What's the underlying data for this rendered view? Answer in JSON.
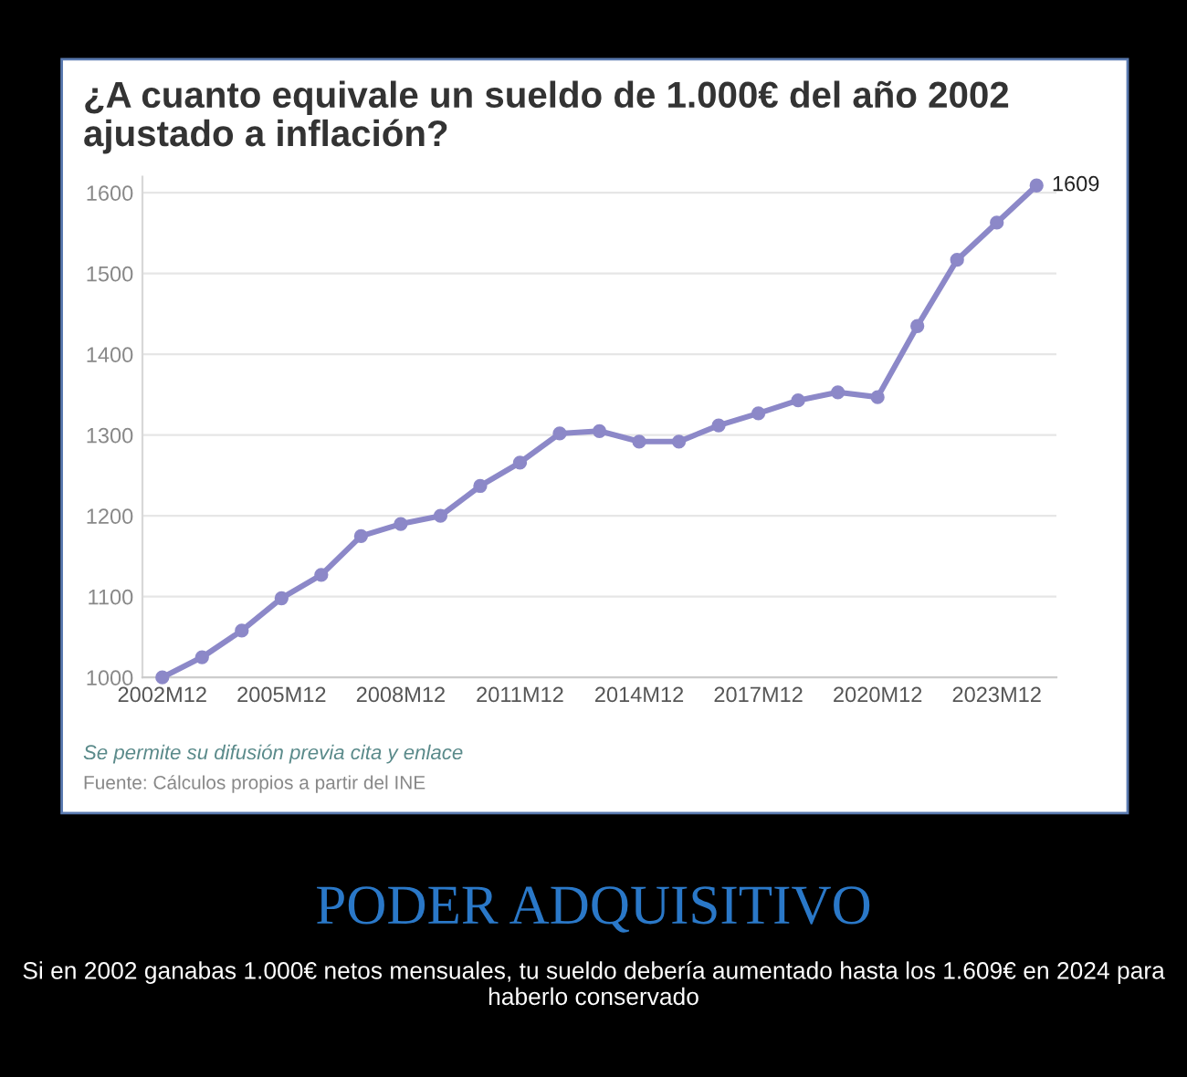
{
  "chart_data": {
    "type": "line",
    "title": "¿A cuanto equivale un sueldo de 1.000€ del año 2002\najustado a inflación?",
    "categories": [
      "2002M12",
      null,
      null,
      "2005M12",
      null,
      null,
      "2008M12",
      null,
      null,
      "2011M12",
      null,
      null,
      "2014M12",
      null,
      null,
      "2017M12",
      null,
      null,
      "2020M12",
      null,
      null,
      "2023M12",
      null
    ],
    "series": [
      {
        "color": "#8c88c8",
        "values": [
          1000,
          1025,
          1058,
          1098,
          1127,
          1175,
          1190,
          1200,
          1237,
          1266,
          1302,
          1305,
          1292,
          1292,
          1312,
          1327,
          1343,
          1353,
          1347,
          1435,
          1517,
          1563,
          1609
        ],
        "value_labels": [
          null,
          null,
          null,
          null,
          null,
          null,
          null,
          null,
          null,
          null,
          null,
          null,
          null,
          null,
          null,
          null,
          null,
          null,
          null,
          null,
          null,
          null,
          "1609"
        ]
      }
    ],
    "ylim": [
      1000,
      1620
    ],
    "yticks": [
      1000,
      1100,
      1200,
      1300,
      1400,
      1500,
      1600
    ],
    "grid": "y",
    "marker": "circle",
    "line_style": "solid",
    "annotations": [
      "Se permite su difusión previa cita y enlace",
      "Fuente: Cálculos propios a partir del INE",
      "PODER ADQUISITIVO",
      "Si en 2002 ganabas 1.000€ netos mensuales, tu sueldo debería aumentado hasta los 1.609€ en 2024 para haberlo conservado"
    ]
  }
}
